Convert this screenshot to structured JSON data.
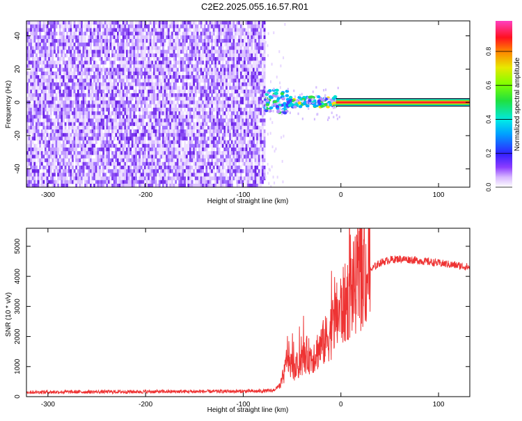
{
  "title": "C2E2.2025.055.16.57.R01",
  "chart_data": [
    {
      "type": "heatmap",
      "xlabel": "Height of straight line (km)",
      "ylabel": "Frequency (Hz)",
      "xlim": [
        -322,
        132
      ],
      "ylim": [
        -51,
        49
      ],
      "xticks": [
        -300,
        -200,
        -100,
        0,
        100
      ],
      "yticks": [
        -40,
        -20,
        0,
        20,
        40
      ],
      "colorbar": {
        "label": "Normalized spectral amplitude",
        "range": [
          0,
          0.98
        ],
        "ticks": [
          0.0,
          0.2,
          0.4,
          0.6,
          0.8
        ]
      },
      "noise_region": {
        "x": [
          -322,
          -78
        ]
      },
      "transition_region": {
        "x": [
          -78,
          -5
        ]
      },
      "carrier": {
        "x": [
          -5,
          132
        ],
        "frequency": 0
      },
      "grid": false,
      "legend": "none"
    },
    {
      "type": "line",
      "xlabel": "Height of straight line (km)",
      "ylabel": "SNR (10 * v/v)",
      "xlim": [
        -322,
        132
      ],
      "ylim": [
        0,
        5600
      ],
      "xticks": [
        -300,
        -200,
        -100,
        0,
        100
      ],
      "yticks": [
        0,
        1000,
        2000,
        3000,
        4000,
        5000
      ],
      "series": [
        {
          "color": "#ee3333",
          "x": [
            -322,
            -250,
            -150,
            -85,
            -70,
            -62,
            -57,
            -55,
            -52,
            -47,
            -40,
            -35,
            -30,
            -25,
            -20,
            -15,
            -10,
            -5,
            0,
            5,
            10,
            15,
            20,
            30,
            40,
            50,
            60,
            70,
            80,
            90,
            100,
            110,
            120,
            132
          ],
          "y": [
            150,
            160,
            170,
            180,
            200,
            350,
            900,
            1500,
            1100,
            900,
            1200,
            1400,
            1300,
            1500,
            1700,
            1900,
            2200,
            2600,
            2900,
            3100,
            3500,
            3700,
            3900,
            4200,
            4450,
            4550,
            4580,
            4560,
            4520,
            4480,
            4440,
            4400,
            4360,
            4300
          ]
        }
      ],
      "grid": false,
      "legend": "none"
    }
  ]
}
